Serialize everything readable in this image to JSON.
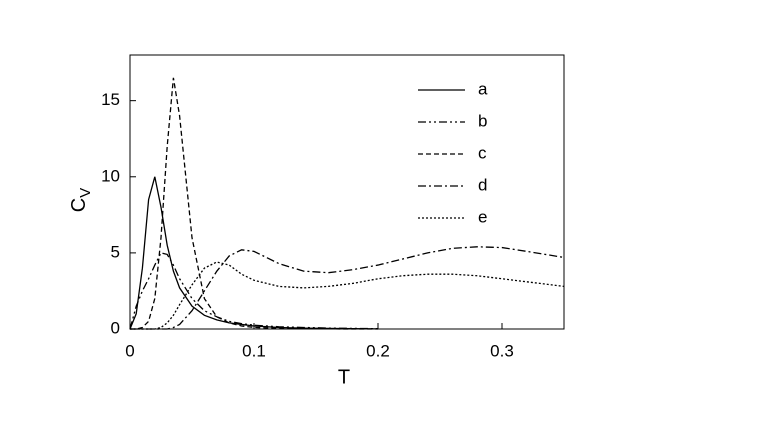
{
  "chart_data": {
    "type": "line",
    "xlabel": "T",
    "ylabel": {
      "main": "C",
      "sub": "V"
    },
    "x": [
      0,
      0.005,
      0.01,
      0.015,
      0.02,
      0.025,
      0.03,
      0.035,
      0.04,
      0.05,
      0.06,
      0.07,
      0.08,
      0.09,
      0.1,
      0.12,
      0.14,
      0.16,
      0.18,
      0.2,
      0.22,
      0.24,
      0.26,
      0.28,
      0.3,
      0.32,
      0.35
    ],
    "xlim": [
      0,
      0.35
    ],
    "xticks": [
      0,
      0.1,
      0.2,
      0.3
    ],
    "ylim": [
      0,
      18
    ],
    "yticks": [
      0,
      5,
      10,
      15
    ],
    "legend": "upper right",
    "series": [
      {
        "name": "a",
        "color": "#000000",
        "dash": "none",
        "values": [
          0,
          1.0,
          4,
          8.5,
          10,
          8,
          5.5,
          3.8,
          2.7,
          1.5,
          0.9,
          0.6,
          0.4,
          0.3,
          0.2,
          0.1,
          0.06,
          0.04,
          0.02,
          0.01,
          null,
          null,
          null,
          null,
          null,
          null,
          null
        ]
      },
      {
        "name": "b",
        "color": "#000000",
        "dash": "8,3,2,3,2,3",
        "values": [
          0,
          1.5,
          2.5,
          3.3,
          4.2,
          5.0,
          4.9,
          4.2,
          3.3,
          2.0,
          1.2,
          0.8,
          0.5,
          0.35,
          0.25,
          0.15,
          0.1,
          0.06,
          0.04,
          0.02,
          null,
          null,
          null,
          null,
          null,
          null,
          null
        ]
      },
      {
        "name": "c",
        "color": "#000000",
        "dash": "5,3",
        "values": [
          0,
          0,
          0.1,
          0.5,
          2,
          6,
          12,
          16.5,
          14,
          6,
          2,
          0.8,
          0.4,
          0.2,
          0.1,
          0.05,
          0.02,
          0.01,
          0,
          0,
          null,
          null,
          null,
          null,
          null,
          null,
          null
        ]
      },
      {
        "name": "d",
        "color": "#000000",
        "dash": "8,3,2,3",
        "values": [
          0,
          0,
          0,
          0,
          0,
          0,
          0,
          0.1,
          0.3,
          1.2,
          2.5,
          3.8,
          4.8,
          5.2,
          5.1,
          4.3,
          3.8,
          3.7,
          3.9,
          4.2,
          4.6,
          5.0,
          5.3,
          5.4,
          5.35,
          5.1,
          4.7
        ]
      },
      {
        "name": "e",
        "color": "#000000",
        "dash": "2,2",
        "values": [
          0,
          0,
          0,
          0,
          0,
          0.1,
          0.4,
          0.9,
          1.6,
          2.9,
          4.0,
          4.4,
          4.2,
          3.6,
          3.2,
          2.8,
          2.7,
          2.8,
          3.0,
          3.3,
          3.5,
          3.6,
          3.6,
          3.5,
          3.3,
          3.1,
          2.8
        ]
      }
    ]
  }
}
